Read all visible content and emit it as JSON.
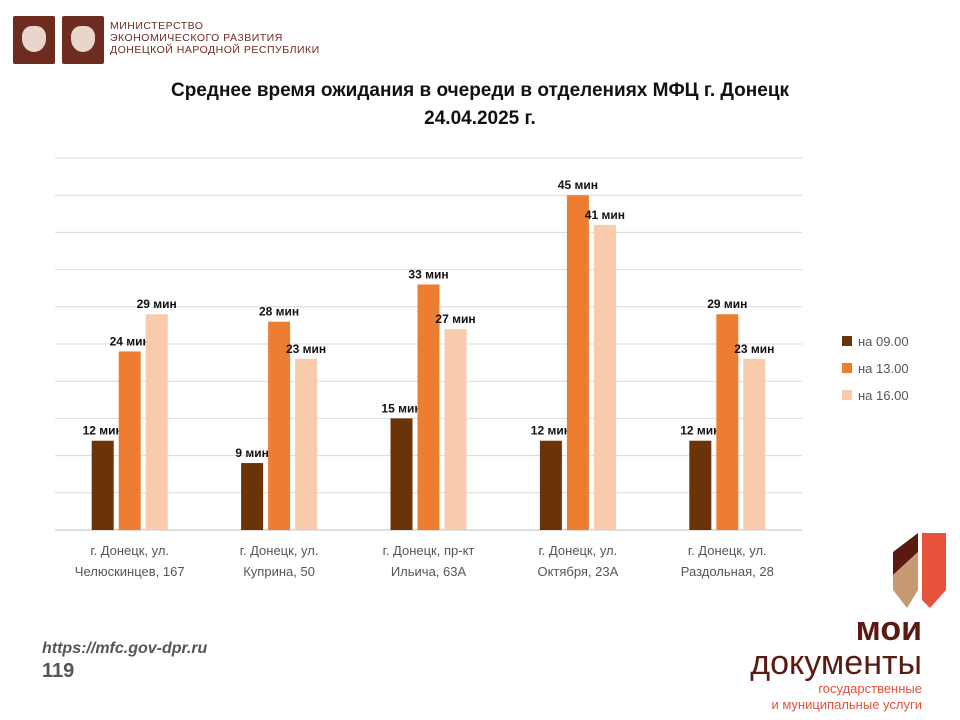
{
  "header": {
    "ministry": [
      "МИНИСТЕРСТВО",
      "ЭКОНОМИЧЕСКОГО РАЗВИТИЯ",
      "ДОНЕЦКОЙ НАРОДНОЙ РЕСПУБЛИКИ"
    ]
  },
  "footer": {
    "url": "https://mfc.gov-dpr.ru",
    "page": "119"
  },
  "logo": {
    "moi": "мои",
    "docs": "документы",
    "line1": "государственные",
    "line2": "и муниципальные услуги"
  },
  "chart_data": {
    "type": "bar",
    "title": "Среднее время ожидания в очереди в отделениях МФЦ г. Донецк",
    "subtitle": "24.04.2025 г.",
    "categories": [
      [
        "г. Донецк, ул.",
        "Челюскинцев, 167"
      ],
      [
        "г. Донецк, ул.",
        "Куприна, 50"
      ],
      [
        "г. Донецк, пр-кт",
        "Ильича, 63А"
      ],
      [
        "г. Донецк, ул.",
        "Октября, 23А"
      ],
      [
        "г. Донецк, ул.",
        "Раздольная, 28"
      ]
    ],
    "series": [
      {
        "name": "на 09.00",
        "color": "#6b3408",
        "values": [
          12,
          9,
          15,
          12,
          12
        ]
      },
      {
        "name": "на 13.00",
        "color": "#ed7d31",
        "values": [
          24,
          28,
          33,
          45,
          29
        ]
      },
      {
        "name": "на 16.00",
        "color": "#f8cbad",
        "values": [
          29,
          23,
          27,
          41,
          23
        ]
      }
    ],
    "label_suffix": " мин",
    "ylim": [
      0,
      50
    ],
    "grid": true,
    "grid_step": 5,
    "legend": "right"
  }
}
